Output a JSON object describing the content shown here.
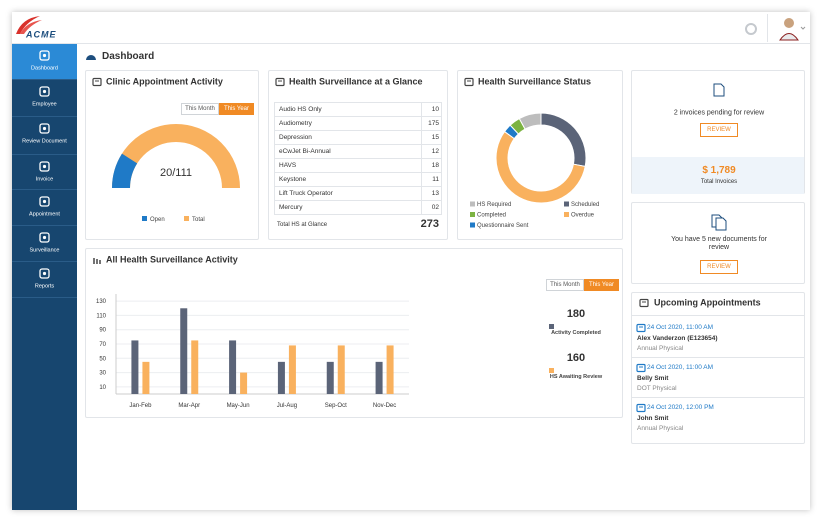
{
  "header": {
    "logo": "ACME"
  },
  "sidebar": {
    "items": [
      "Dashboard",
      "Employee",
      "Review Document",
      "Invoice",
      "Appointment",
      "Surveillance",
      "Reports"
    ]
  },
  "page_title": "Dashboard",
  "chart_data": [
    {
      "type": "gauge",
      "title": "Clinic Appointment Activity",
      "toggle": [
        "This Month",
        "This Year"
      ],
      "center_label": "20/111",
      "categories": [
        "Open",
        "Total"
      ],
      "values": [
        20,
        111
      ],
      "colors": [
        "#1f7ac7",
        "#f9b15e"
      ]
    },
    {
      "type": "donut",
      "title": "Health Surveillance Status",
      "categories": [
        "Scheduled",
        "Overdue",
        "Questionnaire Sent",
        "Completed",
        "HS Required"
      ],
      "values": [
        28,
        57,
        3,
        4,
        8
      ],
      "colors": [
        "#5b6478",
        "#f9b15e",
        "#1f7ac7",
        "#7cb342",
        "#bdbdbd"
      ]
    },
    {
      "type": "bar",
      "title": "All Health Surveillance Activity",
      "toggle": [
        "This Month",
        "This Year"
      ],
      "categories": [
        "Jan-Feb",
        "Mar-Apr",
        "May-Jun",
        "Jul-Aug",
        "Sep-Oct",
        "Nov-Dec"
      ],
      "series": [
        {
          "name": "Activity Completed",
          "color": "#5b6478",
          "total": 180,
          "values": [
            75,
            120,
            75,
            45,
            45,
            45
          ]
        },
        {
          "name": "HS Awaiting Review",
          "color": "#f9b15e",
          "total": 160,
          "values": [
            45,
            75,
            30,
            68,
            68,
            68
          ]
        }
      ],
      "ylim": [
        0,
        140
      ],
      "yticks": [
        10,
        30,
        50,
        70,
        90,
        110,
        130
      ],
      "grid": true
    }
  ],
  "glance": {
    "title": "Health Surveillance at a Glance",
    "rows": [
      [
        "Audio HS Only",
        "10"
      ],
      [
        "Audiometry",
        "175"
      ],
      [
        "Depression",
        "15"
      ],
      [
        "eCwJet Bi-Annual",
        "12"
      ],
      [
        "HAVS",
        "18"
      ],
      [
        "Keystone",
        "11"
      ],
      [
        "Lift Truck Operator",
        "13"
      ],
      [
        "Mercury",
        "02"
      ]
    ],
    "total_label": "Total HS at Glance",
    "total": "273"
  },
  "invoices": {
    "message": "2 invoices pending for review",
    "button": "REVIEW",
    "amount": "$ 1,789",
    "amount_label": "Total Invoices"
  },
  "documents": {
    "message": "You have 5 new documents for review",
    "button": "REVIEW"
  },
  "appointments": {
    "title": "Upcoming Appointments",
    "items": [
      {
        "date": "24 Oct 2020, 11:00 AM",
        "name": "Alex Vanderzon (E123654)",
        "type": "Annual Physical"
      },
      {
        "date": "24 Oct 2020, 11:00 AM",
        "name": "Belly Smit",
        "type": "DOT Physical"
      },
      {
        "date": "24 Oct 2020, 12:00 PM",
        "name": "John Smit",
        "type": "Annual Physical"
      }
    ]
  }
}
